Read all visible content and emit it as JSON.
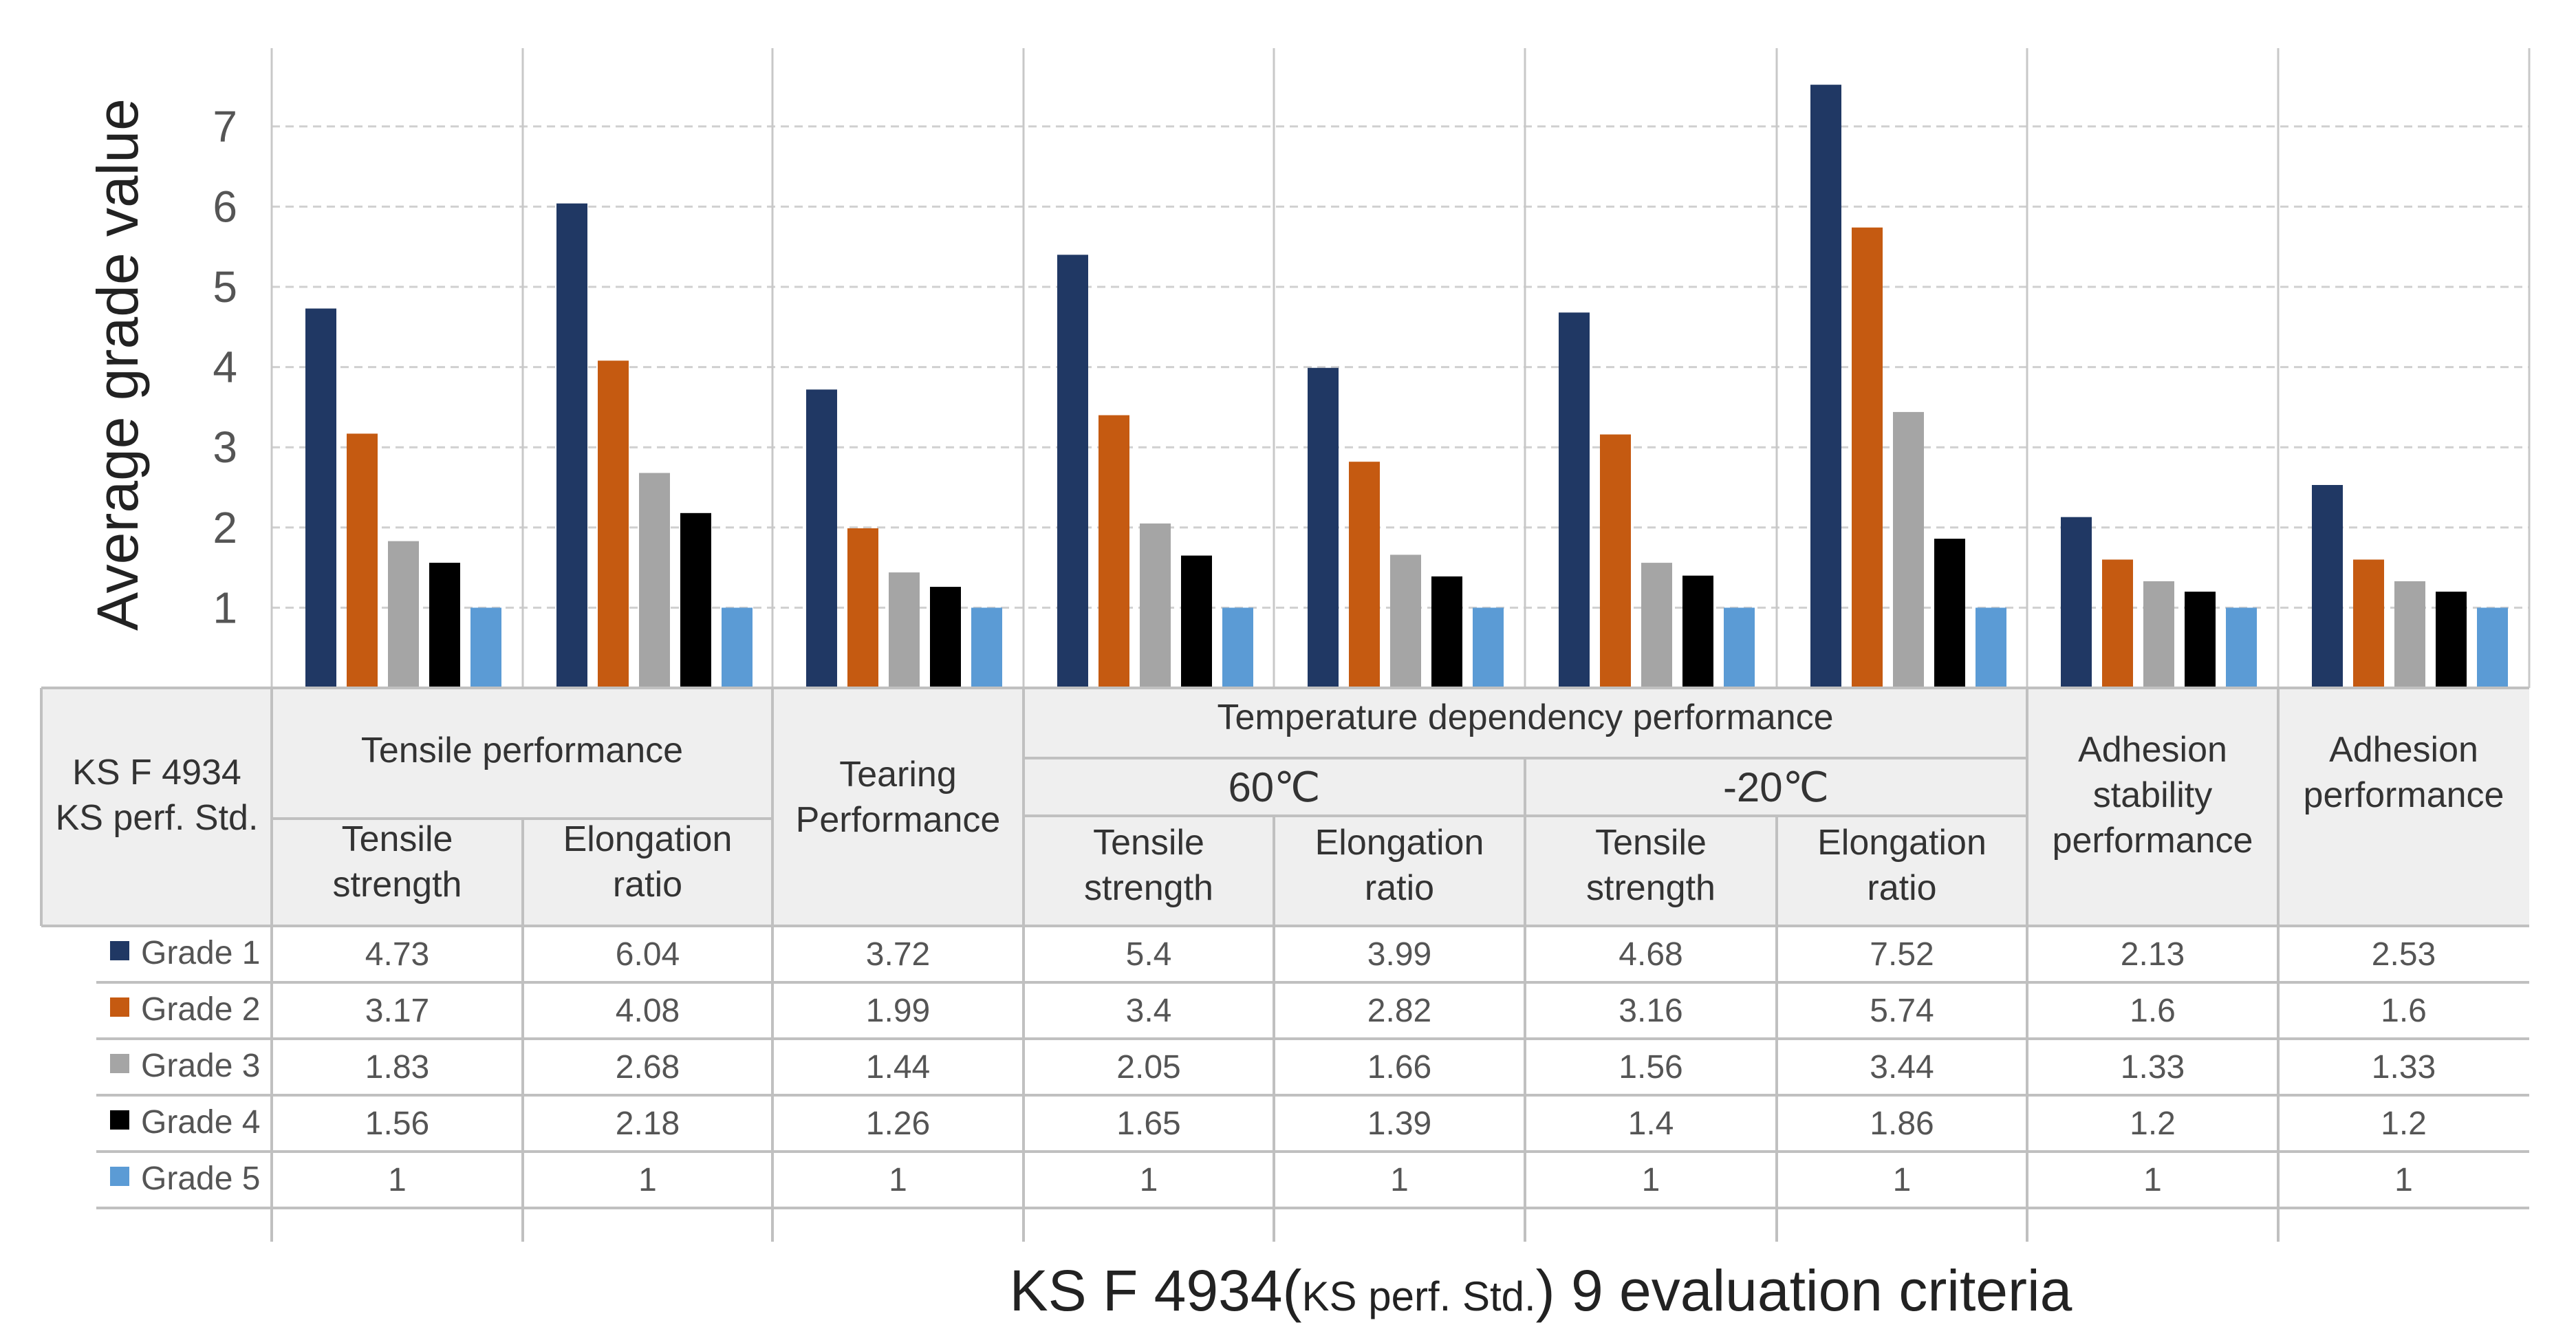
{
  "chart_data": {
    "type": "bar",
    "ylabel": "Average grade value",
    "yticks": [
      1,
      2,
      3,
      4,
      5,
      6,
      7
    ],
    "ylim": [
      0,
      8
    ],
    "grid": true,
    "xlabel": {
      "prefix": "KS F 4934(",
      "small": "KS perf. Std.",
      "suffix": ")  9 evaluation criteria"
    },
    "table_corner": [
      "KS F 4934",
      "KS perf. Std."
    ],
    "groups": [
      {
        "label": "Tensile performance"
      },
      {
        "label": "Tearing Performance"
      },
      {
        "label": "Temperature dependency performance",
        "subgroups": [
          {
            "label": "60℃"
          },
          {
            "label": "-20℃"
          }
        ]
      },
      {
        "label": "Adhesion stability performance"
      },
      {
        "label": "Adhesion performance"
      }
    ],
    "categories": [
      [
        "Tensile",
        "strength"
      ],
      [
        "Elongation",
        "ratio"
      ],
      [
        "Tearing",
        "Performance"
      ],
      [
        "Tensile",
        "strength"
      ],
      [
        "Elongation",
        "ratio"
      ],
      [
        "Tensile",
        "strength"
      ],
      [
        "Elongation",
        "ratio"
      ],
      [
        "Adhesion",
        "stability",
        "performance"
      ],
      [
        "Adhesion",
        "performance"
      ]
    ],
    "series": [
      {
        "name": "Grade 1",
        "color": "#203864",
        "values": [
          4.73,
          6.04,
          3.72,
          5.4,
          3.99,
          4.68,
          7.52,
          2.13,
          2.53
        ]
      },
      {
        "name": "Grade 2",
        "color": "#C55A11",
        "values": [
          3.17,
          4.08,
          1.99,
          3.4,
          2.82,
          3.16,
          5.74,
          1.6,
          1.6
        ]
      },
      {
        "name": "Grade 3",
        "color": "#A5A5A5",
        "values": [
          1.83,
          2.68,
          1.44,
          2.05,
          1.66,
          1.56,
          3.44,
          1.33,
          1.33
        ]
      },
      {
        "name": "Grade 4",
        "color": "#000000",
        "values": [
          1.56,
          2.18,
          1.26,
          1.65,
          1.39,
          1.4,
          1.86,
          1.2,
          1.2
        ]
      },
      {
        "name": "Grade 5",
        "color": "#5B9BD5",
        "values": [
          1,
          1,
          1,
          1,
          1,
          1,
          1,
          1,
          1
        ]
      }
    ]
  }
}
